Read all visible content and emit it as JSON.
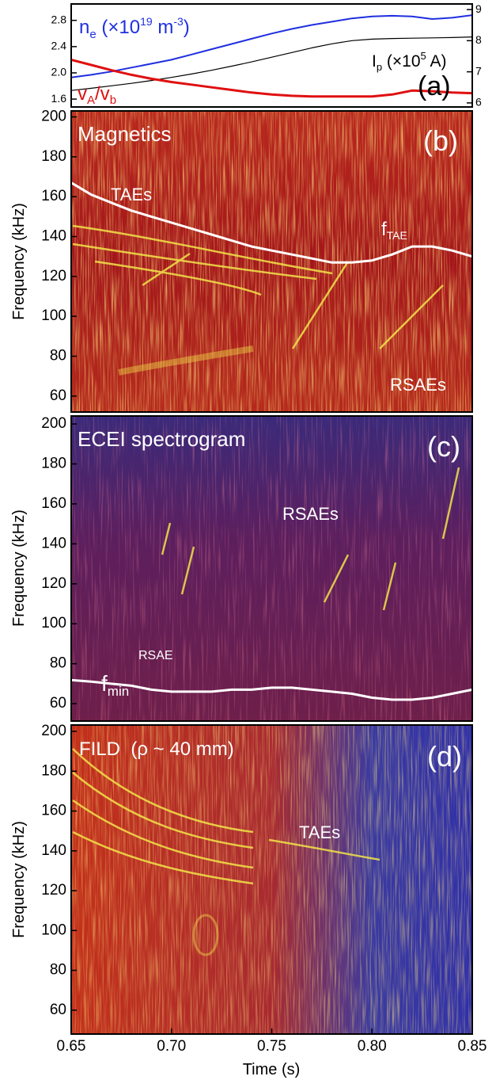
{
  "chart_data": [
    {
      "type": "line",
      "label": "(a)",
      "xlim": [
        0.65,
        0.85
      ],
      "ylim": [
        1.48,
        3.05
      ],
      "yticks": [
        1.6,
        {
          "value": 2,
          "label": "2.0"
        },
        2.4,
        2.8
      ],
      "y2lim": [
        5.87,
        9.18
      ],
      "y2ticks": [
        6,
        7,
        8,
        9
      ],
      "x": [
        0.65,
        0.66,
        0.67,
        0.68,
        0.69,
        0.7,
        0.71,
        0.72,
        0.73,
        0.74,
        0.75,
        0.76,
        0.77,
        0.78,
        0.79,
        0.8,
        0.81,
        0.82,
        0.83,
        0.84,
        0.85
      ],
      "series": [
        {
          "name": [
            "n",
            "e",
            " (×10",
            "19",
            " m",
            "-3",
            ")"
          ],
          "color": "#1f2fe0",
          "values": [
            1.93,
            1.97,
            2.02,
            2.08,
            2.14,
            2.2,
            2.28,
            2.36,
            2.44,
            2.52,
            2.6,
            2.67,
            2.73,
            2.78,
            2.83,
            2.86,
            2.87,
            2.86,
            2.82,
            2.84,
            2.88
          ]
        },
        {
          "name": [
            "I",
            "p",
            " (×10",
            "5",
            " A)"
          ],
          "color": "#000000",
          "axis": "y2",
          "values": [
            6.4,
            6.47,
            6.55,
            6.63,
            6.72,
            6.82,
            6.93,
            7.05,
            7.18,
            7.32,
            7.47,
            7.62,
            7.77,
            7.9,
            8.0,
            8.05,
            8.07,
            8.08,
            8.09,
            8.1,
            8.12
          ]
        },
        {
          "name": [
            "v",
            "A",
            "/v",
            "b"
          ],
          "color": "#e01010",
          "values": [
            2.2,
            2.12,
            2.04,
            1.97,
            1.91,
            1.86,
            1.82,
            1.78,
            1.74,
            1.7,
            1.67,
            1.65,
            1.64,
            1.64,
            1.64,
            1.64,
            1.67,
            1.73,
            1.72,
            1.7,
            1.69
          ]
        }
      ]
    },
    {
      "type": "heatmap",
      "title": "Magnetics",
      "label": "(b)",
      "ylabel": "Frequency (kHz)",
      "xlim": [
        0.65,
        0.85
      ],
      "ylim": [
        52,
        203
      ],
      "yticks": [
        60,
        80,
        100,
        120,
        140,
        160,
        180,
        200
      ],
      "annotations": [
        "TAEs",
        "RSAEs"
      ],
      "x": [
        0.65,
        0.66,
        0.67,
        0.68,
        0.69,
        0.7,
        0.71,
        0.72,
        0.73,
        0.74,
        0.75,
        0.76,
        0.77,
        0.78,
        0.79,
        0.8,
        0.81,
        0.82,
        0.83,
        0.84,
        0.85
      ],
      "series": [
        {
          "name": [
            "f",
            "TAE"
          ],
          "color": "#ffffff",
          "values": [
            167,
            161,
            157,
            153,
            150,
            147,
            144,
            141,
            138,
            135,
            133,
            131,
            129,
            127,
            127,
            128,
            131,
            135,
            135,
            133,
            130
          ]
        }
      ]
    },
    {
      "type": "heatmap",
      "title": "ECEI spectrogram",
      "label": "(c)",
      "ylabel": "Frequency (kHz)",
      "xlim": [
        0.65,
        0.85
      ],
      "ylim": [
        51.3,
        204
      ],
      "yticks": [
        60,
        80,
        100,
        120,
        140,
        160,
        180,
        200
      ],
      "annotations": [
        "RSAEs"
      ],
      "x": [
        0.65,
        0.66,
        0.67,
        0.68,
        0.69,
        0.7,
        0.71,
        0.72,
        0.73,
        0.74,
        0.75,
        0.76,
        0.77,
        0.78,
        0.79,
        0.8,
        0.81,
        0.82,
        0.83,
        0.84,
        0.85
      ],
      "series": [
        {
          "name": [
            "f",
            "min",
            "RSAE"
          ],
          "color": "#ffffff",
          "values": [
            71.8,
            71,
            70,
            69,
            67,
            66,
            66,
            66,
            67,
            67,
            68,
            68,
            67,
            66,
            65,
            63,
            62,
            62,
            63,
            65,
            67
          ]
        }
      ]
    },
    {
      "type": "heatmap",
      "title": "FILD  (ρ ~ 40 mm)",
      "label": "(d)",
      "ylabel": "Frequency (kHz)",
      "xlabel": "Time (s)",
      "xlim": [
        0.65,
        0.85
      ],
      "ylim": [
        48,
        203.2
      ],
      "yticks": [
        60,
        80,
        100,
        120,
        140,
        160,
        180,
        200
      ],
      "xticks": [
        0.65,
        {
          "value": 0.7,
          "label": "0.70"
        },
        0.75,
        {
          "value": 0.8,
          "label": "0.80"
        },
        0.85
      ],
      "annotations": [
        "TAEs"
      ]
    }
  ]
}
